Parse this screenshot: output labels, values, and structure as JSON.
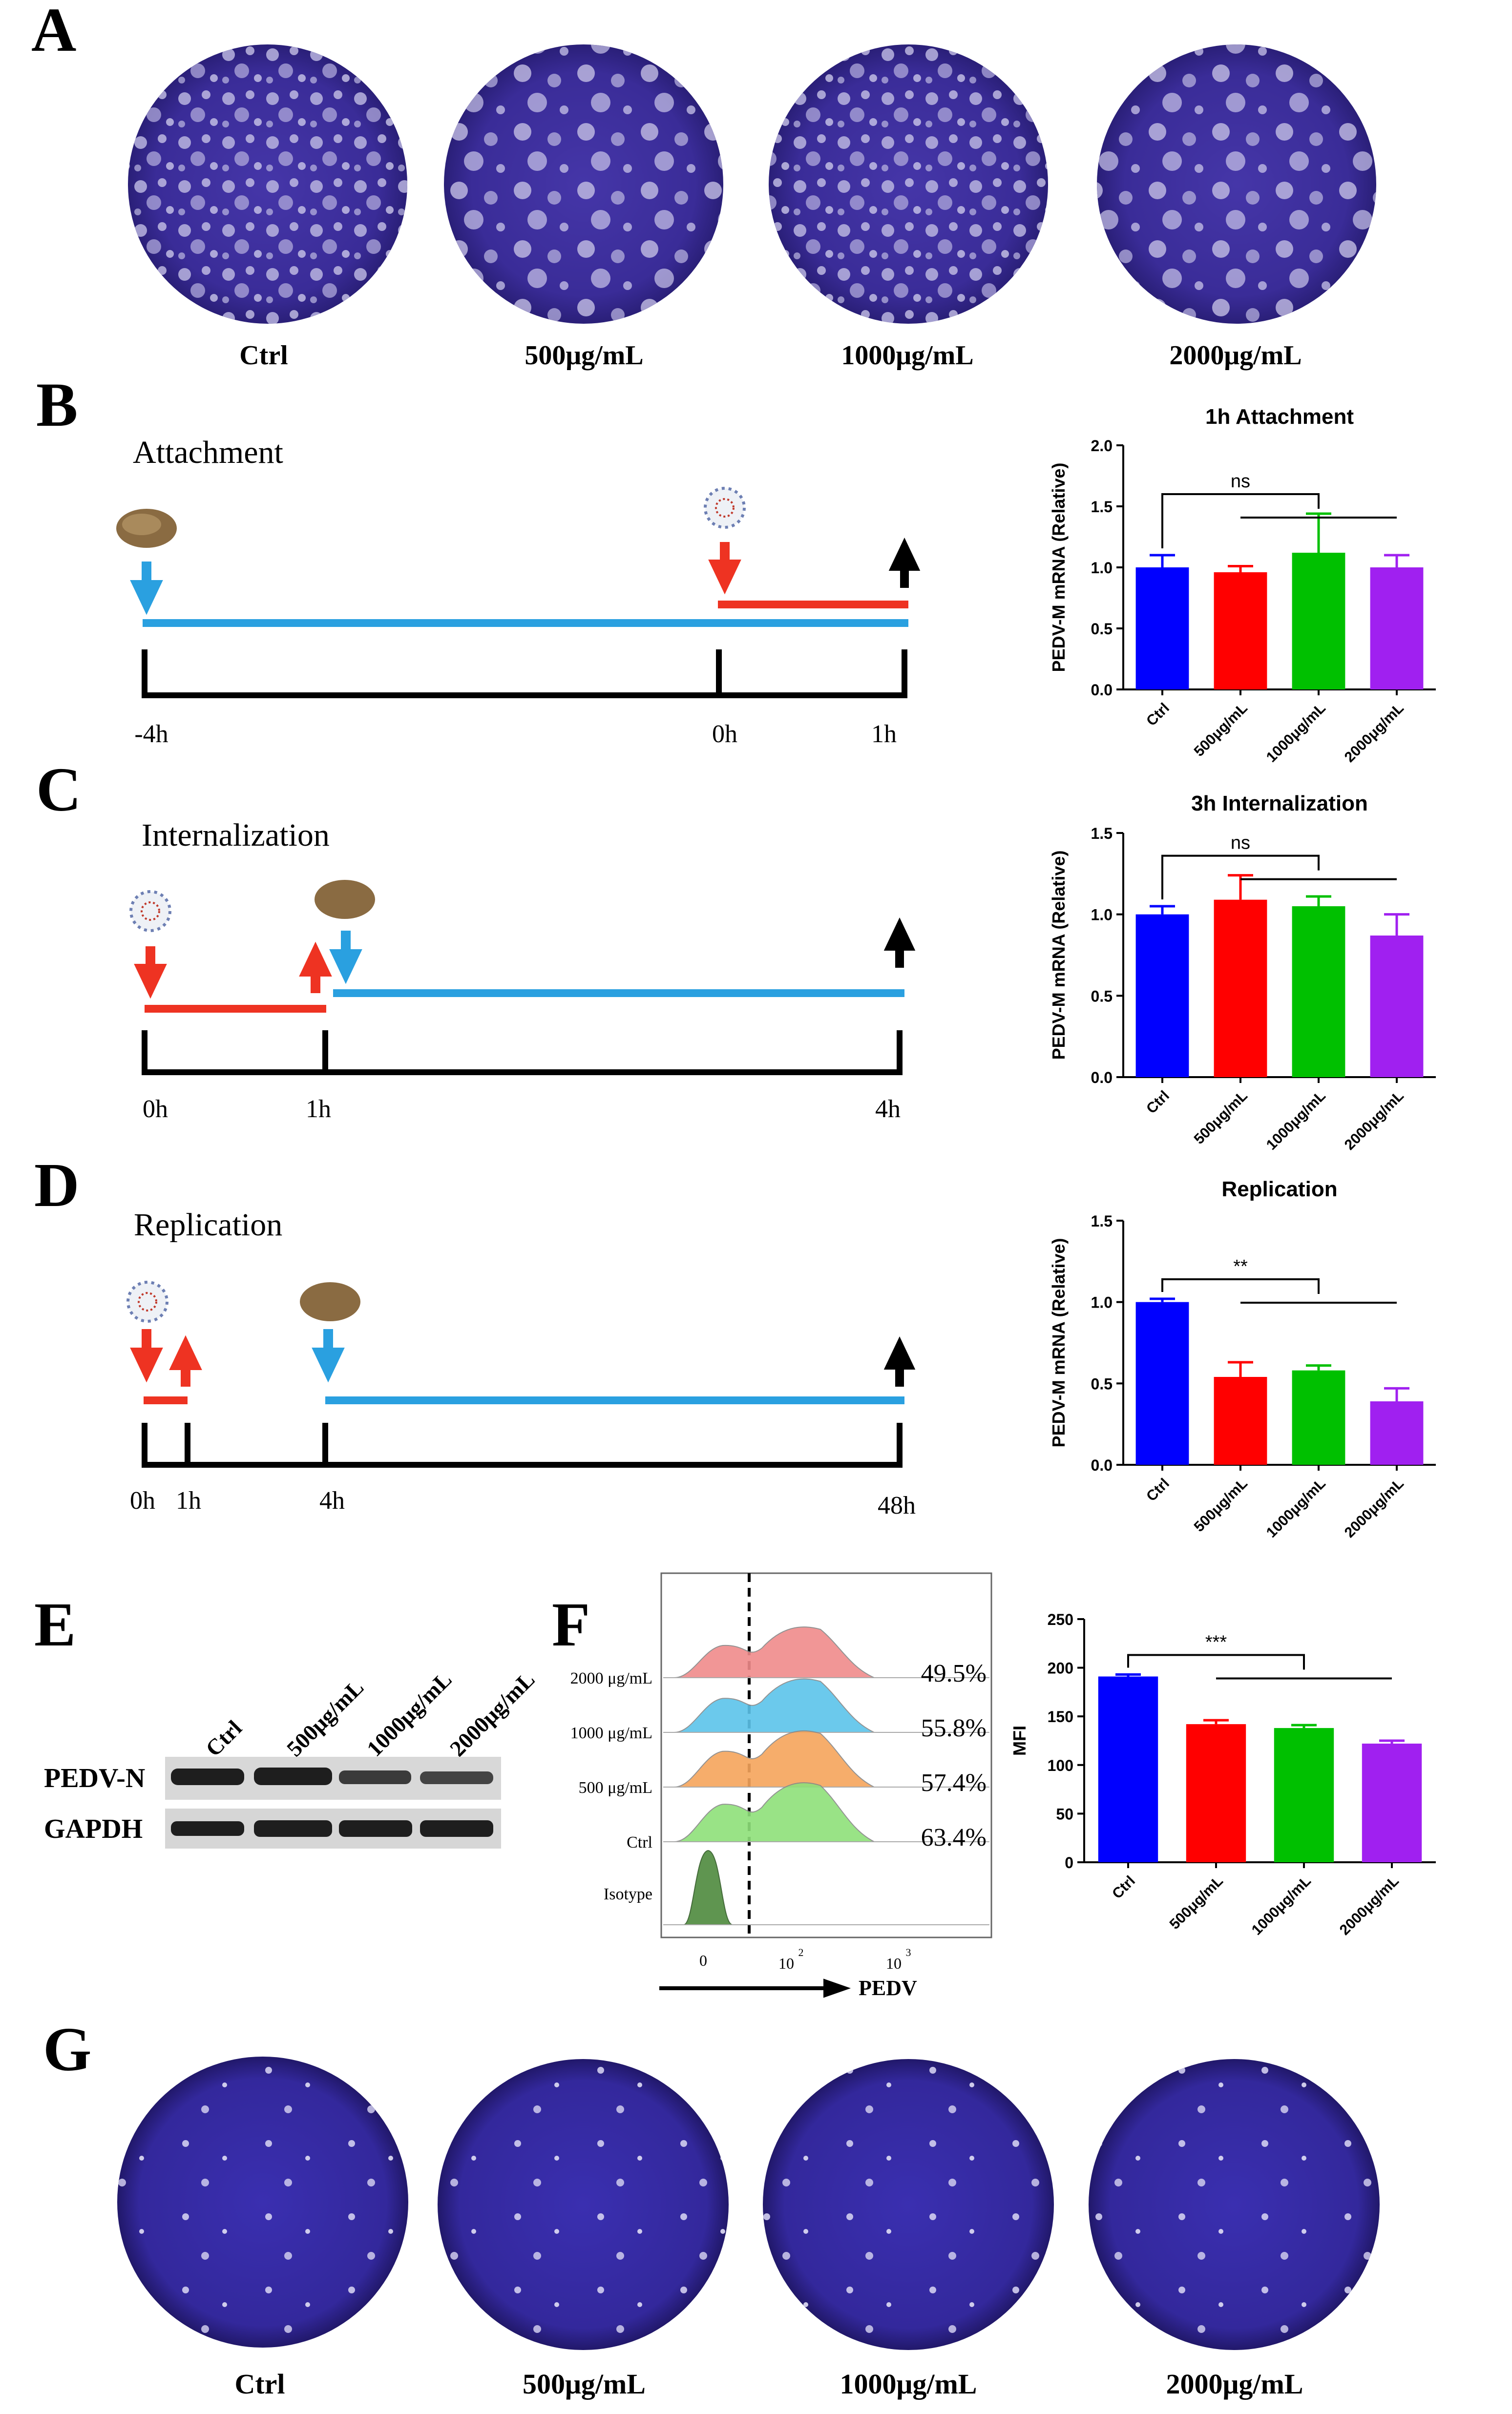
{
  "figure": {
    "panel_labels": {
      "A": "A",
      "B": "B",
      "C": "C",
      "D": "D",
      "E": "E",
      "F": "F",
      "G": "G"
    },
    "plaque_labels_top": [
      "Ctrl",
      "500μg/mL",
      "1000μg/mL",
      "2000μg/mL"
    ],
    "plaque_labels_bottom": [
      "Ctrl",
      "500μg/mL",
      "1000μg/mL",
      "2000μg/mL"
    ],
    "timelines": {
      "attachment": {
        "title": "Attachment",
        "ticks": [
          "-4h",
          "0h",
          "1h"
        ]
      },
      "internalization": {
        "title": "Internalization",
        "ticks": [
          "0h",
          "1h",
          "4h"
        ]
      },
      "replication": {
        "title": "Replication",
        "ticks": [
          "0h",
          "1h",
          "4h",
          "48h"
        ]
      }
    },
    "western": {
      "lanes": [
        "Ctrl",
        "500μg/mL",
        "1000μg/mL",
        "2000μg/mL"
      ],
      "rows": [
        "PEDV-N",
        "GAPDH"
      ]
    },
    "flow": {
      "rows": [
        {
          "label": "2000 μg/mL",
          "percent": "49.5%",
          "color": "#f08b8b"
        },
        {
          "label": "1000 μg/mL",
          "percent": "55.8%",
          "color": "#5cc4ea"
        },
        {
          "label": "500 μg/mL",
          "percent": "57.4%",
          "color": "#f6a55c"
        },
        {
          "label": "Ctrl",
          "percent": "63.4%",
          "color": "#8ee07a"
        },
        {
          "label": "Isotype",
          "percent": "",
          "color": "#4e8a3e"
        }
      ],
      "x_ticks": [
        "0",
        "10",
        "2",
        "10",
        "3"
      ],
      "axis_label": "PEDV"
    },
    "bar_colors": [
      "#0000ff",
      "#ff0000",
      "#00c000",
      "#a020f0"
    ]
  },
  "chart_data": [
    {
      "id": "B",
      "type": "bar",
      "title": "1h Attachment",
      "ylabel": "PEDV-M mRNA (Relative)",
      "categories": [
        "Ctrl",
        "500μg/mL",
        "1000μg/mL",
        "2000μg/mL"
      ],
      "values": [
        1.0,
        0.96,
        1.12,
        1.0
      ],
      "errors": [
        0.1,
        0.05,
        0.32,
        0.1
      ],
      "ylim": [
        0,
        2.0
      ],
      "yticks": [
        "0.0",
        "0.5",
        "1.0",
        "1.5",
        "2.0"
      ],
      "significance": "ns"
    },
    {
      "id": "C",
      "type": "bar",
      "title": "3h Internalization",
      "ylabel": "PEDV-M mRNA (Relative)",
      "categories": [
        "Ctrl",
        "500μg/mL",
        "1000μg/mL",
        "2000μg/mL"
      ],
      "values": [
        1.0,
        1.09,
        1.05,
        0.87
      ],
      "errors": [
        0.05,
        0.15,
        0.06,
        0.13
      ],
      "ylim": [
        0,
        1.5
      ],
      "yticks": [
        "0.0",
        "0.5",
        "1.0",
        "1.5"
      ],
      "significance": "ns"
    },
    {
      "id": "D",
      "type": "bar",
      "title": "Replication",
      "ylabel": "PEDV-M mRNA (Relative)",
      "categories": [
        "Ctrl",
        "500μg/mL",
        "1000μg/mL",
        "2000μg/mL"
      ],
      "values": [
        1.0,
        0.54,
        0.58,
        0.39
      ],
      "errors": [
        0.02,
        0.09,
        0.03,
        0.08
      ],
      "ylim": [
        0,
        1.5
      ],
      "yticks": [
        "0.0",
        "0.5",
        "1.0",
        "1.5"
      ],
      "significance": "**"
    },
    {
      "id": "F",
      "type": "bar",
      "title": "",
      "ylabel": "MFI",
      "categories": [
        "Ctrl",
        "500μg/mL",
        "1000μg/mL",
        "2000μg/mL"
      ],
      "values": [
        191,
        142,
        138,
        122
      ],
      "errors": [
        2,
        4,
        3,
        3
      ],
      "ylim": [
        0,
        250
      ],
      "yticks": [
        "0",
        "50",
        "100",
        "150",
        "200",
        "250"
      ],
      "significance": "***"
    }
  ]
}
